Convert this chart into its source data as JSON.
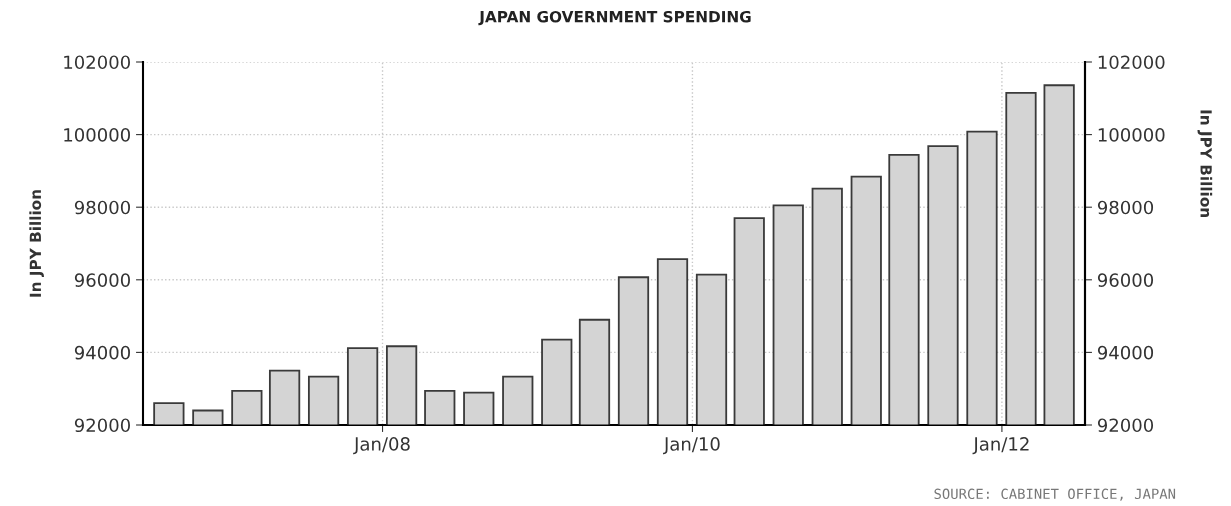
{
  "chart_data": {
    "type": "bar",
    "title": "JAPAN GOVERNMENT SPENDING",
    "ylabel": "In JPY Billion",
    "y2label": "In JPY Billion",
    "x": [
      "2006-08-15",
      "2006-11-15",
      "2007-02-15",
      "2007-05-15",
      "2007-08-15",
      "2007-11-15",
      "2008-02-15",
      "2008-05-15",
      "2008-08-15",
      "2008-11-15",
      "2009-02-15",
      "2009-05-15",
      "2009-08-15",
      "2009-11-15",
      "2010-02-15",
      "2010-05-15",
      "2010-08-15",
      "2010-11-15",
      "2011-02-15",
      "2011-05-15",
      "2011-08-15",
      "2011-11-15",
      "2012-02-15",
      "2012-05-15"
    ],
    "values": [
      92600,
      92400,
      92940,
      93500,
      93330,
      94120,
      94170,
      92940,
      92890,
      93330,
      94350,
      94900,
      96070,
      96570,
      96140,
      97700,
      98050,
      98510,
      98840,
      99440,
      99680,
      100080,
      101150,
      101360
    ],
    "color": "#d4d4d4",
    "xlim": [
      "2006-06-15",
      "2012-07-15"
    ],
    "xticks": [
      {
        "value": "2008-01-01",
        "label": "Jan/08"
      },
      {
        "value": "2010-01-01",
        "label": "Jan/10"
      },
      {
        "value": "2012-01-01",
        "label": "Jan/12"
      }
    ],
    "ylim": [
      92000,
      102000
    ],
    "yticks": [
      92000,
      94000,
      96000,
      98000,
      100000,
      102000
    ],
    "y2lim": [
      92000,
      102000
    ],
    "y2ticks": [
      92000,
      94000,
      96000,
      98000,
      100000,
      102000
    ],
    "grid": true,
    "annotations": [
      "SOURCE: CABINET OFFICE, JAPAN"
    ]
  }
}
